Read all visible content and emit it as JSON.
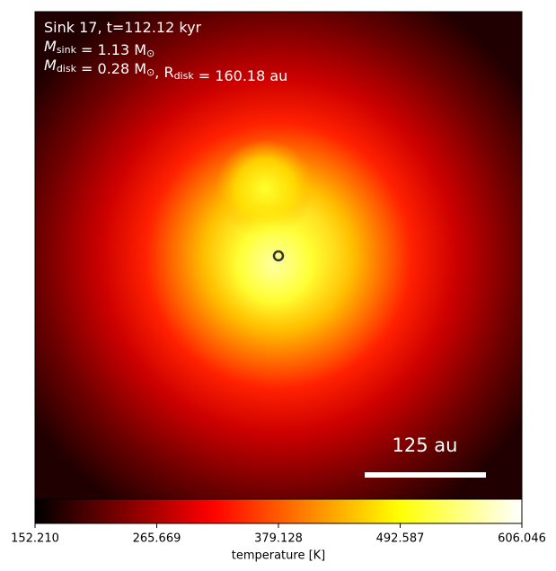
{
  "chart_data": {
    "type": "image",
    "colormap": "hot",
    "annotations": [
      [
        {
          "text": "Sink 17, t=112.12 kyr"
        }
      ],
      [
        {
          "text": "M"
        },
        {
          "sub": "sink"
        },
        {
          "text": " = 1.13 M"
        },
        {
          "sub": "⊙"
        }
      ],
      [
        {
          "text": "M"
        },
        {
          "sub": "disk"
        },
        {
          "text": " = 0.28 M"
        },
        {
          "sub": "⊙"
        },
        {
          "text": ", R"
        },
        {
          "sub": "disk"
        },
        {
          "text": " = 160.18 au"
        }
      ]
    ],
    "scale_bar": {
      "value": 125,
      "label": "125 au"
    },
    "colorbar": {
      "label": "temperature [K]",
      "clim": [
        152.21,
        606.046
      ],
      "ticks": [
        {
          "value": 152.21,
          "label": "152.210"
        },
        265.669,
        379.128,
        492.587,
        606.046
      ]
    }
  }
}
